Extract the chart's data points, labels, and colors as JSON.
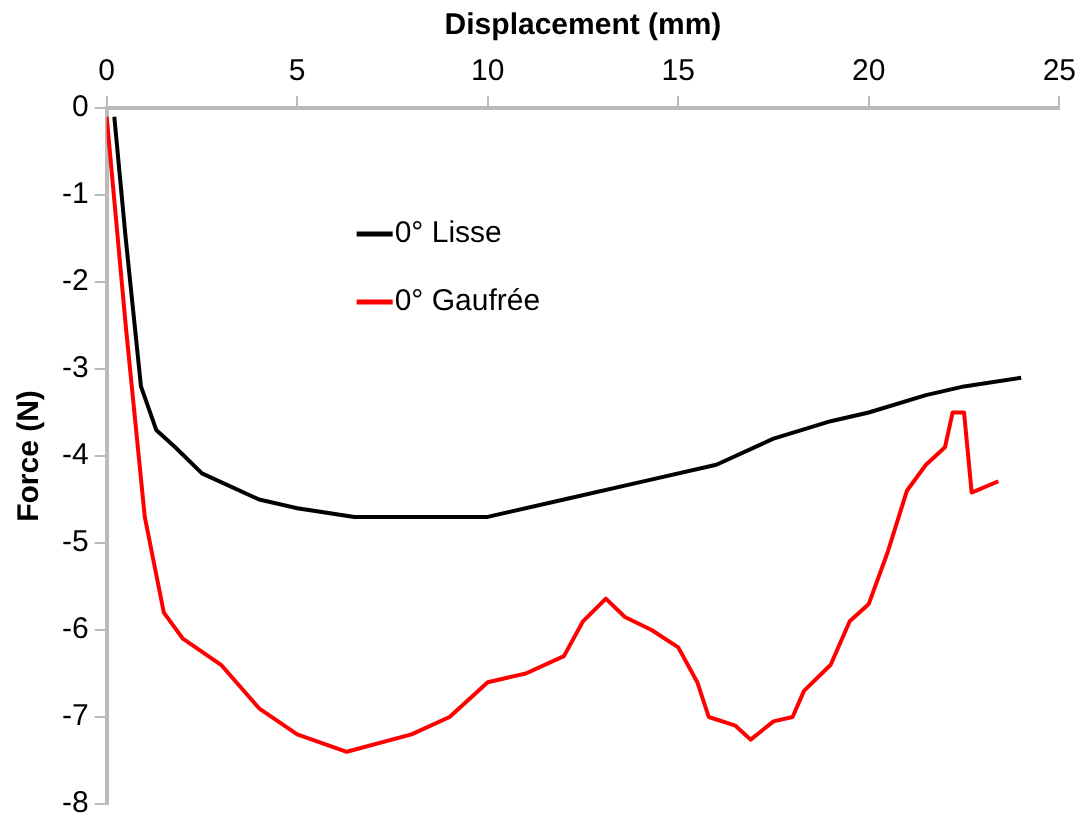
{
  "chart_data": {
    "type": "line",
    "xlabel": "Displacement (mm)",
    "ylabel": "Force (N)",
    "xlim": [
      0,
      25
    ],
    "xticks": [
      0,
      5,
      10,
      15,
      20,
      25
    ],
    "ylim": [
      -8,
      0
    ],
    "yticks": [
      0,
      -1,
      -2,
      -3,
      -4,
      -5,
      -6,
      -7,
      -8
    ],
    "grid": false,
    "legend": "top left",
    "marker": "none",
    "line_style": "solid",
    "series": [
      {
        "name": "0° Lisse",
        "color": "#000000",
        "x": [
          0.2,
          0.5,
          0.9,
          1.3,
          1.8,
          2.5,
          4,
          5,
          6.5,
          10,
          12,
          14,
          16,
          17.5,
          19,
          20,
          21.5,
          22.5,
          24
        ],
        "values": [
          -0.1,
          -1.5,
          -3.2,
          -3.7,
          -3.9,
          -4.2,
          -4.5,
          -4.6,
          -4.7,
          -4.7,
          -4.5,
          -4.3,
          -4.1,
          -3.8,
          -3.6,
          -3.5,
          -3.3,
          -3.2,
          -3.1
        ]
      },
      {
        "name": "0° Gaufrée",
        "color": "#ff0000",
        "x": [
          0,
          0.5,
          1,
          1.5,
          2,
          3,
          4,
          5,
          6.3,
          8,
          9,
          10,
          11,
          12,
          12.5,
          13.1,
          13.6,
          14.3,
          15,
          15.5,
          15.8,
          16.5,
          16.9,
          17.5,
          18,
          18.3,
          19,
          19.5,
          20,
          20.5,
          21,
          21.5,
          22,
          22.2,
          22.5,
          22.7,
          23.4
        ],
        "values": [
          -0.1,
          -2.5,
          -4.7,
          -5.8,
          -6.1,
          -6.4,
          -6.9,
          -7.2,
          -7.4,
          -7.2,
          -7,
          -6.6,
          -6.5,
          -6.3,
          -5.9,
          -5.64,
          -5.85,
          -6,
          -6.2,
          -6.6,
          -7,
          -7.1,
          -7.26,
          -7.05,
          -7,
          -6.7,
          -6.4,
          -5.9,
          -5.7,
          -5.1,
          -4.4,
          -4.1,
          -3.9,
          -3.5,
          -3.5,
          -4.42,
          -4.29
        ]
      }
    ]
  }
}
